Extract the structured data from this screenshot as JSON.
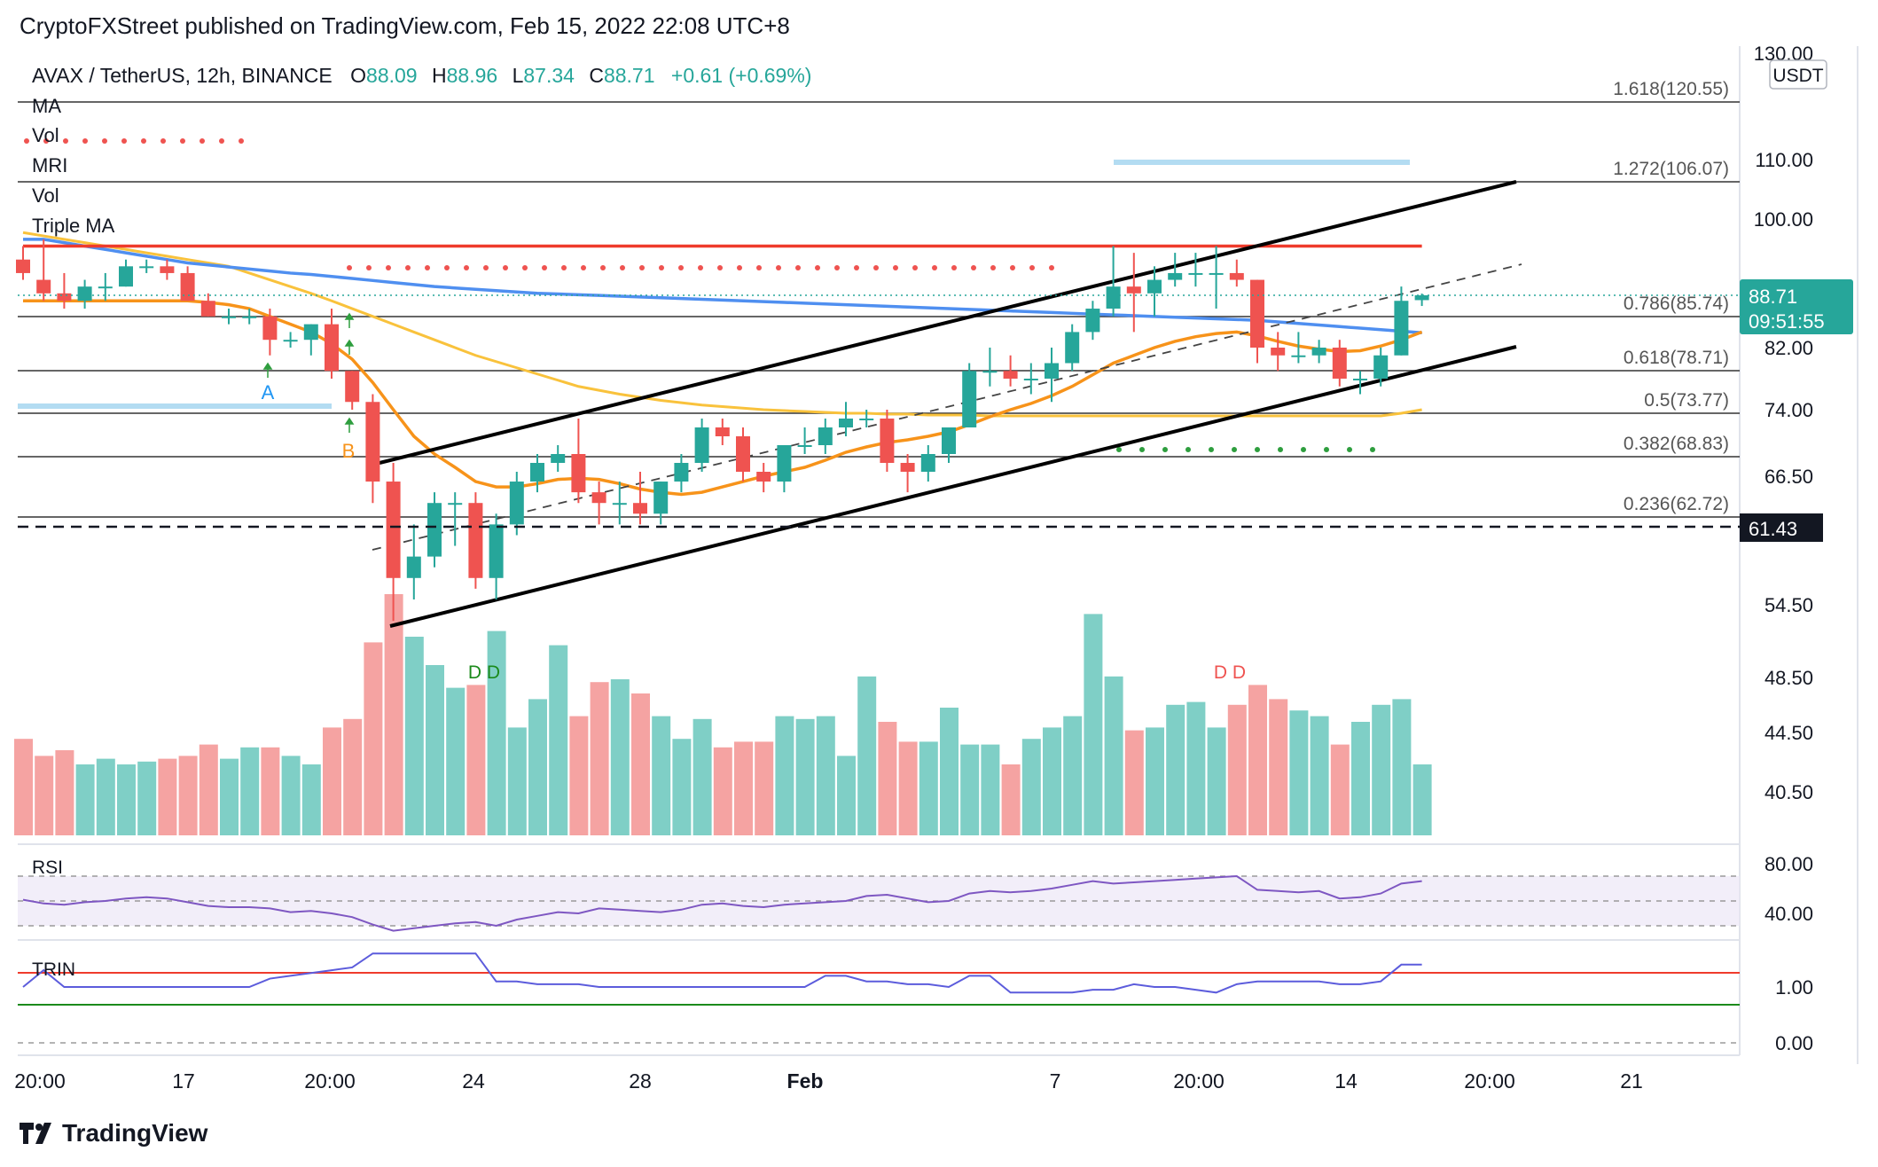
{
  "header": {
    "published": "CryptoFXStreet published on TradingView.com, Feb 15, 2022 22:08 UTC+8"
  },
  "symbol_line": {
    "pair": "AVAX / TetherUS, 12h, BINANCE",
    "o_label": "O",
    "o": "88.09",
    "h_label": "H",
    "h": "88.96",
    "l_label": "L",
    "l": "87.34",
    "c_label": "C",
    "c": "88.71",
    "change": "+0.61 (+0.69%)"
  },
  "indicator_labels": [
    "MA",
    "Vol",
    "MRI",
    "Vol",
    "Triple MA"
  ],
  "currency": "USDT",
  "price_axis": [
    "130.00",
    "110.00",
    "100.00",
    "82.00",
    "74.00",
    "66.50",
    "54.50",
    "48.50",
    "44.50",
    "40.50"
  ],
  "price_box": {
    "price": "88.71",
    "countdown": "09:51:55"
  },
  "level_box": "61.43",
  "fib_levels": [
    {
      "label": "1.618(120.55)"
    },
    {
      "label": "1.272(106.07)"
    },
    {
      "label": "0.786(85.74)"
    },
    {
      "label": "0.618(78.71)"
    },
    {
      "label": "0.5(73.77)"
    },
    {
      "label": "0.382(68.83)"
    },
    {
      "label": "0.236(62.72)"
    }
  ],
  "rsi": {
    "label": "RSI",
    "axis": [
      "80.00",
      "40.00"
    ]
  },
  "trin": {
    "label": "TRIN",
    "axis": [
      "1.00",
      "0.00"
    ]
  },
  "time_axis": [
    "20:00",
    "17",
    "20:00",
    "24",
    "28",
    "Feb",
    "7",
    "20:00",
    "14",
    "20:00",
    "21"
  ],
  "annotations": {
    "a": "A",
    "b": "B",
    "dd_green": "D  D",
    "dd_red": "D  D"
  },
  "footer": {
    "brand": "TradingView"
  },
  "colors": {
    "up": "#26a69a",
    "down": "#ef5350",
    "ma_blue": "#2962ff",
    "ma_orange": "#f7931a",
    "ma_yellow": "#f9c23c",
    "ma_red": "#ef3b2c"
  },
  "chart_data": {
    "type": "candlestick",
    "title": "AVAX / TetherUS, 12h, BINANCE",
    "candles": [
      {
        "o": 94,
        "h": 96,
        "l": 91,
        "c": 92
      },
      {
        "o": 91,
        "h": 97,
        "l": 88,
        "c": 89
      },
      {
        "o": 89,
        "h": 92,
        "l": 87,
        "c": 88
      },
      {
        "o": 88,
        "h": 91,
        "l": 87,
        "c": 90
      },
      {
        "o": 90,
        "h": 92,
        "l": 88,
        "c": 90
      },
      {
        "o": 90,
        "h": 94,
        "l": 90,
        "c": 93
      },
      {
        "o": 93,
        "h": 94,
        "l": 92,
        "c": 93
      },
      {
        "o": 93,
        "h": 94,
        "l": 91,
        "c": 92
      },
      {
        "o": 92,
        "h": 93,
        "l": 88,
        "c": 88
      },
      {
        "o": 88,
        "h": 89,
        "l": 86,
        "c": 86
      },
      {
        "o": 86,
        "h": 87,
        "l": 85,
        "c": 86
      },
      {
        "o": 86,
        "h": 87,
        "l": 85,
        "c": 86
      },
      {
        "o": 86,
        "h": 87,
        "l": 81,
        "c": 83
      },
      {
        "o": 83,
        "h": 84,
        "l": 82,
        "c": 83
      },
      {
        "o": 83,
        "h": 85,
        "l": 81,
        "c": 85
      },
      {
        "o": 85,
        "h": 87,
        "l": 78,
        "c": 79
      },
      {
        "o": 79,
        "h": 79,
        "l": 74,
        "c": 75
      },
      {
        "o": 75,
        "h": 76,
        "l": 64,
        "c": 66
      },
      {
        "o": 66,
        "h": 68,
        "l": 53,
        "c": 57
      },
      {
        "o": 57,
        "h": 62,
        "l": 55,
        "c": 59
      },
      {
        "o": 59,
        "h": 65,
        "l": 58,
        "c": 64
      },
      {
        "o": 64,
        "h": 65,
        "l": 60,
        "c": 64
      },
      {
        "o": 64,
        "h": 65,
        "l": 56,
        "c": 57
      },
      {
        "o": 57,
        "h": 63,
        "l": 55,
        "c": 62
      },
      {
        "o": 62,
        "h": 67,
        "l": 61,
        "c": 66
      },
      {
        "o": 66,
        "h": 69,
        "l": 65,
        "c": 68
      },
      {
        "o": 68,
        "h": 70,
        "l": 67,
        "c": 69
      },
      {
        "o": 69,
        "h": 73,
        "l": 64,
        "c": 65
      },
      {
        "o": 65,
        "h": 66,
        "l": 62,
        "c": 64
      },
      {
        "o": 64,
        "h": 66,
        "l": 62,
        "c": 64
      },
      {
        "o": 64,
        "h": 67,
        "l": 62,
        "c": 63
      },
      {
        "o": 63,
        "h": 66,
        "l": 62,
        "c": 66
      },
      {
        "o": 66,
        "h": 69,
        "l": 65,
        "c": 68
      },
      {
        "o": 68,
        "h": 73,
        "l": 67,
        "c": 72
      },
      {
        "o": 72,
        "h": 73,
        "l": 70,
        "c": 71
      },
      {
        "o": 71,
        "h": 72,
        "l": 66,
        "c": 67
      },
      {
        "o": 67,
        "h": 68,
        "l": 65,
        "c": 66
      },
      {
        "o": 66,
        "h": 70,
        "l": 65,
        "c": 70
      },
      {
        "o": 70,
        "h": 72,
        "l": 69,
        "c": 70
      },
      {
        "o": 70,
        "h": 73,
        "l": 69,
        "c": 72
      },
      {
        "o": 72,
        "h": 75,
        "l": 71,
        "c": 73
      },
      {
        "o": 73,
        "h": 74,
        "l": 72,
        "c": 73
      },
      {
        "o": 73,
        "h": 74,
        "l": 67,
        "c": 68
      },
      {
        "o": 68,
        "h": 69,
        "l": 65,
        "c": 67
      },
      {
        "o": 67,
        "h": 70,
        "l": 66,
        "c": 69
      },
      {
        "o": 69,
        "h": 72,
        "l": 68,
        "c": 72
      },
      {
        "o": 72,
        "h": 80,
        "l": 72,
        "c": 79
      },
      {
        "o": 79,
        "h": 82,
        "l": 77,
        "c": 79
      },
      {
        "o": 79,
        "h": 81,
        "l": 77,
        "c": 78
      },
      {
        "o": 78,
        "h": 80,
        "l": 76,
        "c": 78
      },
      {
        "o": 78,
        "h": 82,
        "l": 75,
        "c": 80
      },
      {
        "o": 80,
        "h": 85,
        "l": 79,
        "c": 84
      },
      {
        "o": 84,
        "h": 88,
        "l": 83,
        "c": 87
      },
      {
        "o": 87,
        "h": 96,
        "l": 86,
        "c": 90
      },
      {
        "o": 90,
        "h": 95,
        "l": 84,
        "c": 89
      },
      {
        "o": 89,
        "h": 93,
        "l": 86,
        "c": 91
      },
      {
        "o": 91,
        "h": 95,
        "l": 90,
        "c": 92
      },
      {
        "o": 92,
        "h": 95,
        "l": 90,
        "c": 92
      },
      {
        "o": 92,
        "h": 96,
        "l": 87,
        "c": 92
      },
      {
        "o": 92,
        "h": 94,
        "l": 90,
        "c": 91
      },
      {
        "o": 91,
        "h": 91,
        "l": 80,
        "c": 82
      },
      {
        "o": 82,
        "h": 84,
        "l": 79,
        "c": 81
      },
      {
        "o": 81,
        "h": 84,
        "l": 80,
        "c": 81
      },
      {
        "o": 81,
        "h": 83,
        "l": 80,
        "c": 82
      },
      {
        "o": 82,
        "h": 83,
        "l": 77,
        "c": 78
      },
      {
        "o": 78,
        "h": 79,
        "l": 76,
        "c": 78
      },
      {
        "o": 78,
        "h": 82,
        "l": 77,
        "c": 81
      },
      {
        "o": 81,
        "h": 90,
        "l": 81,
        "c": 88
      },
      {
        "o": 88.09,
        "h": 88.96,
        "l": 87.34,
        "c": 88.71
      }
    ],
    "volume": [
      34,
      28,
      30,
      25,
      27,
      25,
      26,
      27,
      28,
      32,
      27,
      31,
      31,
      28,
      25,
      38,
      41,
      68,
      85,
      70,
      60,
      52,
      53,
      72,
      38,
      48,
      67,
      42,
      54,
      55,
      50,
      42,
      34,
      41,
      31,
      33,
      33,
      42,
      41,
      42,
      28,
      56,
      40,
      33,
      33,
      45,
      32,
      32,
      25,
      34,
      38,
      42,
      78,
      56,
      37,
      38,
      46,
      47,
      38,
      46,
      53,
      48,
      44,
      42,
      32,
      40,
      46,
      48,
      25
    ],
    "rsi": [
      51,
      48,
      47,
      49,
      50,
      52,
      53,
      52,
      49,
      46,
      45,
      45,
      44,
      41,
      42,
      40,
      37,
      31,
      26,
      28,
      30,
      32,
      33,
      30,
      35,
      38,
      41,
      40,
      44,
      43,
      42,
      41,
      43,
      47,
      48,
      46,
      45,
      47,
      48,
      49,
      50,
      54,
      55,
      52,
      49,
      50,
      56,
      58,
      57,
      58,
      60,
      63,
      66,
      64,
      65,
      66,
      67,
      68,
      69,
      70,
      59,
      58,
      57,
      58,
      52,
      53,
      56,
      64,
      66
    ],
    "trin": [
      1.0,
      1.3,
      1.0,
      1.0,
      1.0,
      1.0,
      1.0,
      1.0,
      1.0,
      1.0,
      1.0,
      1.0,
      1.15,
      1.2,
      1.25,
      1.3,
      1.35,
      1.6,
      1.6,
      1.6,
      1.6,
      1.6,
      1.6,
      1.1,
      1.1,
      1.05,
      1.05,
      1.05,
      1.0,
      1.0,
      1.0,
      1.0,
      1.0,
      1.0,
      1.0,
      1.0,
      1.0,
      1.0,
      1.0,
      1.2,
      1.2,
      1.1,
      1.1,
      1.05,
      1.05,
      1.0,
      1.2,
      1.2,
      0.9,
      0.9,
      0.9,
      0.9,
      0.95,
      0.95,
      1.05,
      1.0,
      1.0,
      0.95,
      0.9,
      1.05,
      1.1,
      1.1,
      1.1,
      1.1,
      1.05,
      1.05,
      1.1,
      1.4,
      1.4
    ],
    "ma_blue": [
      97,
      97,
      96.5,
      96,
      95.5,
      95,
      94.5,
      94,
      93.5,
      93.2,
      92.9,
      92.6,
      92.3,
      92,
      91.8,
      91.5,
      91.2,
      90.9,
      90.6,
      90.3,
      90,
      89.8,
      89.6,
      89.4,
      89.2,
      89,
      88.9,
      88.8,
      88.7,
      88.6,
      88.5,
      88.4,
      88.3,
      88.2,
      88.1,
      88,
      87.9,
      87.8,
      87.7,
      87.6,
      87.5,
      87.4,
      87.3,
      87.2,
      87.1,
      87.0,
      86.9,
      86.8,
      86.7,
      86.6,
      86.5,
      86.4,
      86.3,
      86.2,
      86.1,
      86.0,
      85.9,
      85.8,
      85.7,
      85.6,
      85.5,
      85.3,
      85.1,
      84.9,
      84.7,
      84.5,
      84.3,
      84.1,
      83.9
    ],
    "ma_red": [
      96,
      96,
      96,
      96,
      96,
      96,
      96,
      96,
      96,
      96,
      96,
      96,
      96,
      96,
      96,
      96,
      96,
      96,
      96,
      96,
      96,
      96,
      96,
      96,
      96,
      96,
      96,
      96,
      96,
      96,
      96,
      96,
      96,
      96,
      96,
      96,
      96,
      96,
      96,
      96,
      96,
      96,
      96,
      96,
      96,
      96,
      96,
      96,
      96,
      96,
      96,
      96,
      96,
      96,
      96,
      96,
      96,
      96,
      96,
      96,
      96,
      96,
      96,
      96,
      96,
      96,
      96,
      96,
      96
    ],
    "ma_yellow": [
      98,
      97.5,
      97,
      96.5,
      96,
      95.5,
      95,
      94.5,
      94,
      93.5,
      93,
      92,
      91,
      90,
      89,
      88,
      87,
      86,
      85,
      84,
      83,
      82,
      81,
      80.2,
      79.4,
      78.6,
      77.8,
      77,
      76.5,
      76,
      75.6,
      75.2,
      74.9,
      74.6,
      74.4,
      74.2,
      74.0,
      73.9,
      73.8,
      73.7,
      73.6,
      73.6,
      73.5,
      73.5,
      73.4,
      73.4,
      73.4,
      73.3,
      73.3,
      73.3,
      73.3,
      73.3,
      73.3,
      73.3,
      73.3,
      73.3,
      73.3,
      73.3,
      73.3,
      73.3,
      73.3,
      73.3,
      73.3,
      73.3,
      73.3,
      73.3,
      73.3,
      73.6,
      74
    ],
    "ma_orange": [
      88,
      88,
      88,
      88,
      88,
      88,
      88,
      88,
      88,
      87.8,
      87.5,
      87,
      86,
      85,
      84,
      82.5,
      80.5,
      77.5,
      74,
      71,
      69,
      67.5,
      66,
      65.5,
      65.5,
      65.8,
      66.2,
      66.3,
      66.2,
      65.8,
      65.3,
      65,
      64.8,
      65,
      65.5,
      66,
      66.5,
      67,
      67.5,
      68.3,
      69.2,
      69.8,
      70.3,
      70.6,
      71,
      71.5,
      72.3,
      73.2,
      74,
      74.8,
      75.8,
      77,
      78.5,
      80,
      81,
      82,
      82.8,
      83.4,
      83.8,
      84,
      83.5,
      82.8,
      82.2,
      81.8,
      81.5,
      81.6,
      82.2,
      83,
      84
    ]
  }
}
